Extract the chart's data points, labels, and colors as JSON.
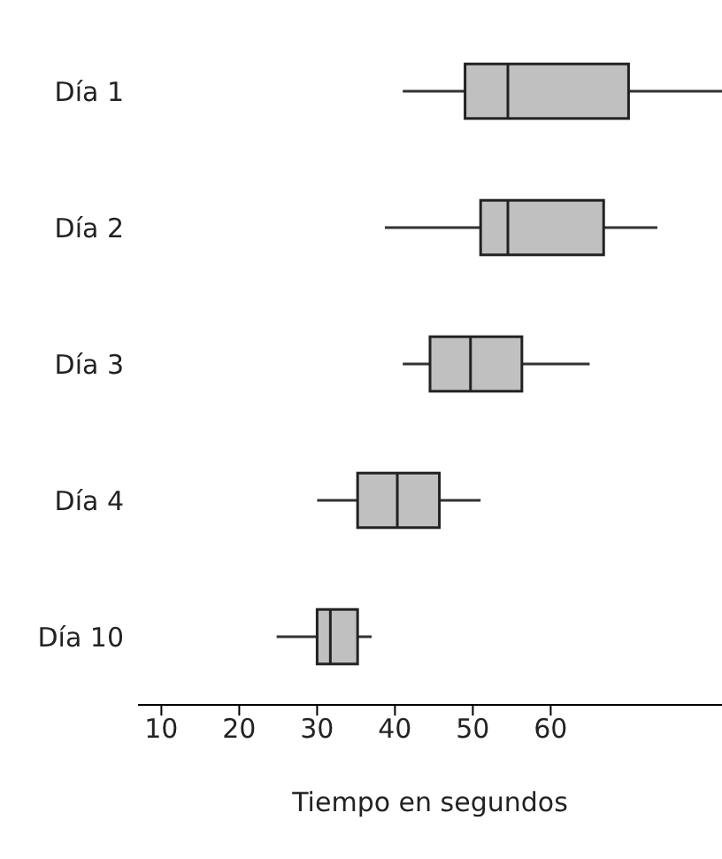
{
  "chart_data": {
    "type": "box",
    "orientation": "horizontal",
    "xlabel": "Tiempo en segundos",
    "categories": [
      "Día 1",
      "Día 2",
      "Día 3",
      "Día 4",
      "Día 10"
    ],
    "color": "#c0c0c0",
    "boxes": [
      {
        "low": 41,
        "q1": 49,
        "median": 54.5,
        "q3": 70,
        "high": 82
      },
      {
        "low": 38.7,
        "q1": 51,
        "median": 54.5,
        "q3": 66.8,
        "high": 73.7
      },
      {
        "low": 41,
        "q1": 44.5,
        "median": 49.7,
        "q3": 56.3,
        "high": 65
      },
      {
        "low": 30,
        "q1": 35.2,
        "median": 40.3,
        "q3": 45.7,
        "high": 51
      },
      {
        "low": 24.8,
        "q1": 30,
        "median": 31.7,
        "q3": 35.2,
        "high": 37
      }
    ],
    "xlim": [
      7,
      82
    ],
    "xticks": [
      10,
      20,
      30,
      40,
      50,
      60
    ],
    "grid": false
  }
}
